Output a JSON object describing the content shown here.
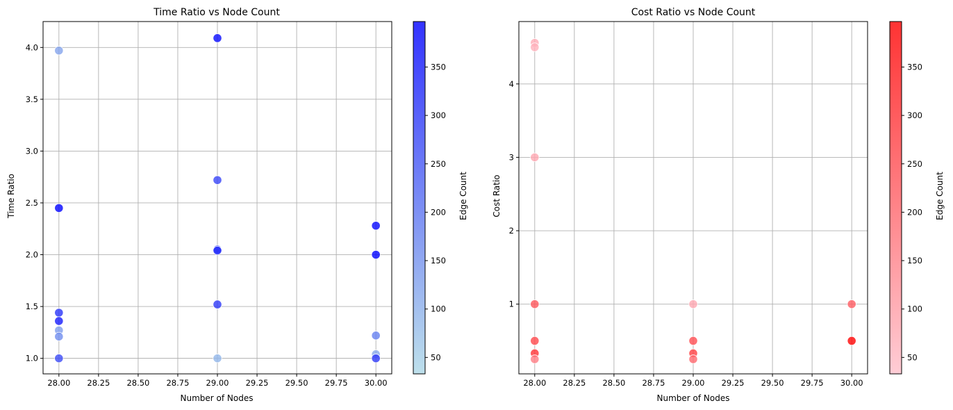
{
  "chart_data": [
    {
      "type": "scatter",
      "title": "Time Ratio vs Node Count",
      "xlabel": "Number of Nodes",
      "ylabel": "Time Ratio",
      "xlim": [
        27.9,
        30.1
      ],
      "ylim": [
        0.85,
        4.25
      ],
      "xticks": [
        28.0,
        28.25,
        28.5,
        28.75,
        29.0,
        29.25,
        29.5,
        29.75,
        30.0
      ],
      "xtick_labels": [
        "28.00",
        "28.25",
        "28.50",
        "28.75",
        "29.00",
        "29.25",
        "29.50",
        "29.75",
        "30.00"
      ],
      "yticks": [
        1.0,
        1.5,
        2.0,
        2.5,
        3.0,
        3.5,
        4.0
      ],
      "ytick_labels": [
        "1.0",
        "1.5",
        "2.0",
        "2.5",
        "3.0",
        "3.5",
        "4.0"
      ],
      "grid": true,
      "colorbar": {
        "label": "Edge Count",
        "range": [
          33,
          397
        ],
        "ticks": [
          50,
          100,
          150,
          200,
          250,
          300,
          350
        ],
        "colors": [
          "#add8e6",
          "#0000ff"
        ]
      },
      "points": [
        {
          "x": 28,
          "y": 3.97,
          "c": 120
        },
        {
          "x": 28,
          "y": 2.45,
          "c": 390
        },
        {
          "x": 28,
          "y": 1.44,
          "c": 310
        },
        {
          "x": 28,
          "y": 1.36,
          "c": 350
        },
        {
          "x": 28,
          "y": 1.27,
          "c": 130
        },
        {
          "x": 28,
          "y": 1.21,
          "c": 160
        },
        {
          "x": 28,
          "y": 1.0,
          "c": 270
        },
        {
          "x": 29,
          "y": 4.09,
          "c": 380
        },
        {
          "x": 29,
          "y": 2.72,
          "c": 280
        },
        {
          "x": 29,
          "y": 2.05,
          "c": 300
        },
        {
          "x": 29,
          "y": 2.04,
          "c": 320
        },
        {
          "x": 29,
          "y": 1.52,
          "c": 300
        },
        {
          "x": 29,
          "y": 1.0,
          "c": 90
        },
        {
          "x": 30,
          "y": 2.28,
          "c": 385
        },
        {
          "x": 30,
          "y": 2.0,
          "c": 390
        },
        {
          "x": 30,
          "y": 1.22,
          "c": 180
        },
        {
          "x": 30,
          "y": 1.04,
          "c": 110
        },
        {
          "x": 30,
          "y": 1.0,
          "c": 300
        }
      ]
    },
    {
      "type": "scatter",
      "title": "Cost Ratio vs Node Count",
      "xlabel": "Number of Nodes",
      "ylabel": "Cost Ratio",
      "xlim": [
        27.9,
        30.1
      ],
      "ylim": [
        0.05,
        4.85
      ],
      "xticks": [
        28.0,
        28.25,
        28.5,
        28.75,
        29.0,
        29.25,
        29.5,
        29.75,
        30.0
      ],
      "xtick_labels": [
        "28.00",
        "28.25",
        "28.50",
        "28.75",
        "29.00",
        "29.25",
        "29.50",
        "29.75",
        "30.00"
      ],
      "yticks": [
        1,
        2,
        3,
        4
      ],
      "ytick_labels": [
        "1",
        "2",
        "3",
        "4"
      ],
      "grid": true,
      "colorbar": {
        "label": "Edge Count",
        "range": [
          33,
          397
        ],
        "ticks": [
          50,
          100,
          150,
          200,
          250,
          300,
          350
        ],
        "colors": [
          "#ffc0cb",
          "#ff0000"
        ]
      },
      "points": [
        {
          "x": 28,
          "y": 4.56,
          "c": 70
        },
        {
          "x": 28,
          "y": 4.5,
          "c": 60
        },
        {
          "x": 28,
          "y": 3.0,
          "c": 80
        },
        {
          "x": 28,
          "y": 1.0,
          "c": 230
        },
        {
          "x": 28,
          "y": 0.5,
          "c": 260
        },
        {
          "x": 28,
          "y": 0.33,
          "c": 300
        },
        {
          "x": 28,
          "y": 0.25,
          "c": 160
        },
        {
          "x": 29,
          "y": 1.0,
          "c": 80
        },
        {
          "x": 29,
          "y": 0.5,
          "c": 250
        },
        {
          "x": 29,
          "y": 0.33,
          "c": 280
        },
        {
          "x": 29,
          "y": 0.25,
          "c": 200
        },
        {
          "x": 30,
          "y": 1.0,
          "c": 220
        },
        {
          "x": 30,
          "y": 0.5,
          "c": 390
        }
      ]
    }
  ]
}
